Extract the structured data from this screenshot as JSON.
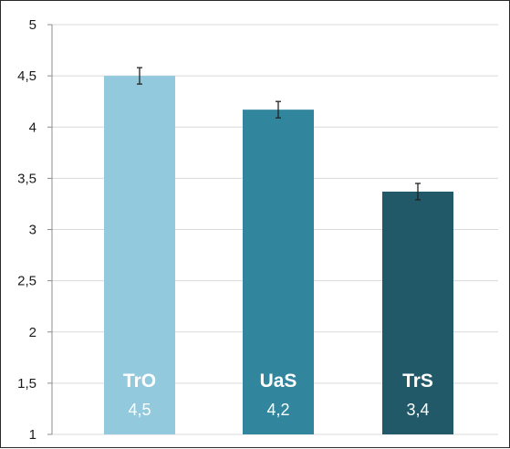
{
  "chart_data": {
    "type": "bar",
    "categories": [
      "TrO",
      "UaS",
      "TrS"
    ],
    "values": [
      4.5,
      4.17,
      3.37
    ],
    "value_labels": [
      "4,5",
      "4,2",
      "3,4"
    ],
    "error": [
      0.08,
      0.08,
      0.08
    ],
    "ylim": [
      1,
      5
    ],
    "yticks": [
      1,
      1.5,
      2,
      2.5,
      3,
      3.5,
      4,
      4.5,
      5
    ],
    "ytick_labels": [
      "1",
      "1,5",
      "2",
      "2,5",
      "3",
      "3,5",
      "4",
      "4,5",
      "5"
    ],
    "grid": "horizontal",
    "colors": [
      "#92c9dc",
      "#31859c",
      "#215968"
    ],
    "gridline_color": "#d9d9d9",
    "title": "",
    "xlabel": "",
    "ylabel": ""
  }
}
